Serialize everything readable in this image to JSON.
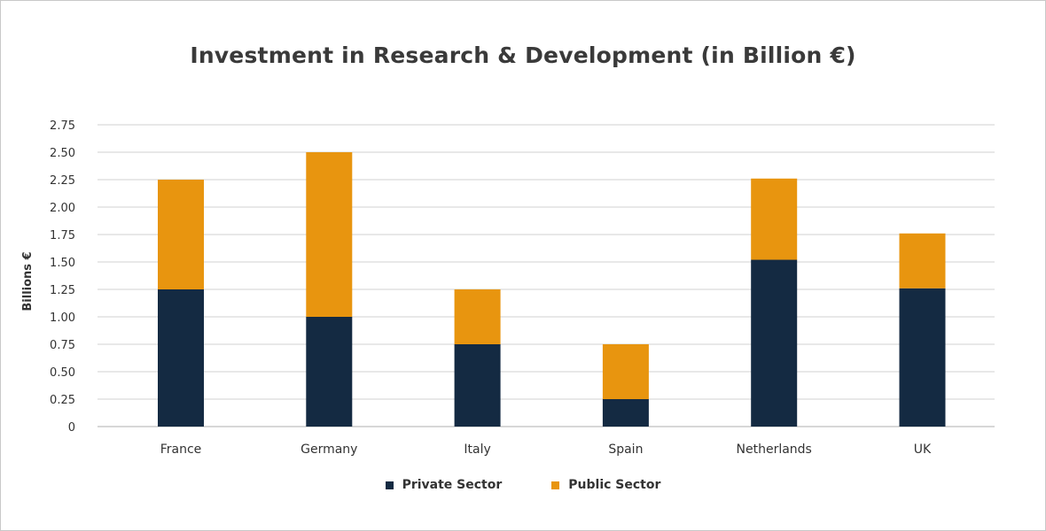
{
  "chart_data": {
    "type": "bar",
    "stacked": true,
    "title": "Investment in Research & Development (in Billion €)",
    "xlabel": "",
    "ylabel": "Billions €",
    "ylim": [
      0,
      2.75
    ],
    "yticks": [
      "0",
      "0.25",
      "0.50",
      "0.75",
      "1.00",
      "1.25",
      "1.50",
      "1.75",
      "2.00",
      "2.25",
      "2.50",
      "2.75"
    ],
    "categories": [
      "France",
      "Germany",
      "Italy",
      "Spain",
      "Netherlands",
      "UK"
    ],
    "series": [
      {
        "name": "Private Sector",
        "color": "#142a42",
        "values": [
          1.25,
          1.0,
          0.75,
          0.25,
          1.52,
          1.26
        ]
      },
      {
        "name": "Public Sector",
        "color": "#e8950f",
        "values": [
          1.0,
          1.5,
          0.5,
          0.5,
          0.74,
          0.5
        ]
      }
    ],
    "grid": true,
    "legend_position": "bottom"
  }
}
